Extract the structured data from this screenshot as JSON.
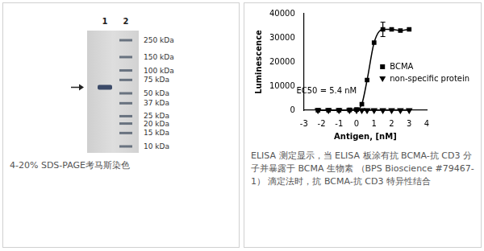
{
  "gel": {
    "lanes": [
      "1",
      "2"
    ],
    "markers": [
      {
        "value": 250,
        "label": "250 kDa"
      },
      {
        "value": 150,
        "label": "150 kDa"
      },
      {
        "value": 100,
        "label": "100 kDa"
      },
      {
        "value": 75,
        "label": "75 kDa"
      },
      {
        "value": 50,
        "label": "50 kDa"
      },
      {
        "value": 37,
        "label": "37 kDa"
      },
      {
        "value": 25,
        "label": "25 kDa"
      },
      {
        "value": 20,
        "label": "20 kDa"
      },
      {
        "value": 15,
        "label": "15 kDa"
      },
      {
        "value": 10,
        "label": "10 kDa"
      }
    ],
    "sample_band_kda": 60,
    "caption": "4-20% SDS-PAGE考马斯染色"
  },
  "chart_data": {
    "type": "scatter",
    "x_label": "Antigen, [nM]",
    "y_label": "Luminescence",
    "annotation": "EC50 = 5.4 nM",
    "x": [
      -2.2,
      -1.6,
      -1.0,
      -0.4,
      0.0,
      0.3,
      0.6,
      1.0,
      1.5,
      2.0,
      2.5,
      3.0
    ],
    "xlim": [
      -3,
      4
    ],
    "xticks": [
      -3,
      -2,
      -1,
      0,
      1,
      2,
      3,
      4
    ],
    "ylim": [
      0,
      40000
    ],
    "yticks": [
      0,
      10000,
      20000,
      30000,
      40000
    ],
    "grid": false,
    "legend": "right",
    "series": [
      {
        "name": "BCMA",
        "color": "#000000",
        "marker": "square",
        "line_style": "solid",
        "values": [
          0,
          0,
          0,
          100,
          300,
          2500,
          12500,
          28000,
          33500,
          33500,
          33000,
          33500
        ],
        "errors": [
          0,
          0,
          0,
          0,
          0,
          0,
          0,
          0,
          3000,
          0,
          0,
          0
        ]
      },
      {
        "name": "non-specific protein",
        "color": "#000000",
        "marker": "triangle",
        "line_style": "solid",
        "values": [
          0,
          0,
          0,
          0,
          0,
          0,
          0,
          0,
          0,
          0,
          0,
          0
        ]
      }
    ],
    "caption": "ELISA 测定显示，当 ELISA 板涂有抗 BCMA-抗 CD3 分子并暴露于 BCMA 生物素 （BPS Bioscience #79467-1） 滴定法时，抗 BCMA-抗 CD3 特异性结合"
  }
}
